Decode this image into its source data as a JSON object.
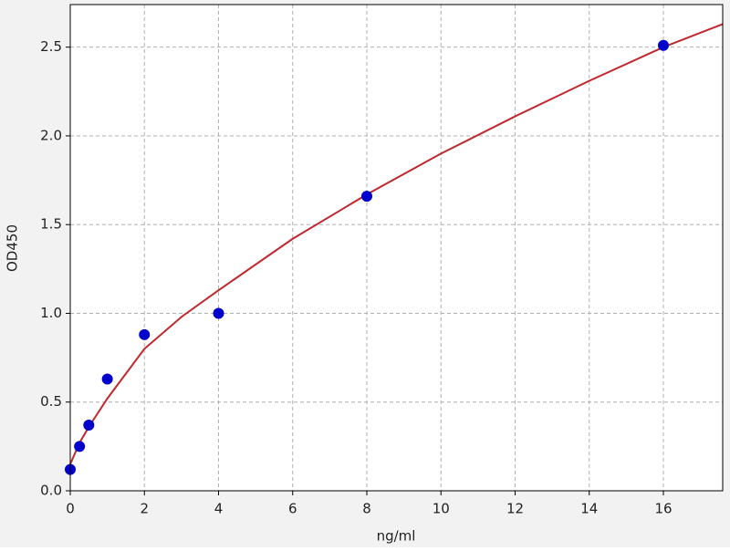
{
  "chart_data": {
    "type": "scatter",
    "xlabel": "ng/ml",
    "ylabel": "OD450",
    "xlim": [
      0,
      17.6
    ],
    "ylim": [
      0,
      2.74
    ],
    "xticks": [
      0,
      2,
      4,
      6,
      8,
      10,
      12,
      14,
      16
    ],
    "yticks": [
      {
        "value": 0,
        "label": "0.0"
      },
      0.5,
      {
        "value": 1,
        "label": "1.0"
      },
      1.5,
      {
        "value": 2,
        "label": "2.0"
      },
      2.5
    ],
    "grid": true,
    "series": [
      {
        "type": "scatter",
        "color": "#0000cc",
        "x": [
          0,
          0.25,
          0.5,
          1,
          2,
          4,
          8,
          16
        ],
        "values": [
          0.12,
          0.25,
          0.37,
          0.63,
          0.88,
          1.0,
          1.66,
          2.51
        ]
      },
      {
        "type": "line",
        "color": "#c0282d",
        "x": [
          0,
          0.25,
          0.5,
          1,
          2,
          3,
          4,
          6,
          8,
          10,
          12,
          14,
          16,
          17.6
        ],
        "values": [
          0.15,
          0.27,
          0.36,
          0.52,
          0.8,
          0.98,
          1.13,
          1.42,
          1.67,
          1.9,
          2.11,
          2.31,
          2.5,
          2.63
        ]
      }
    ]
  }
}
